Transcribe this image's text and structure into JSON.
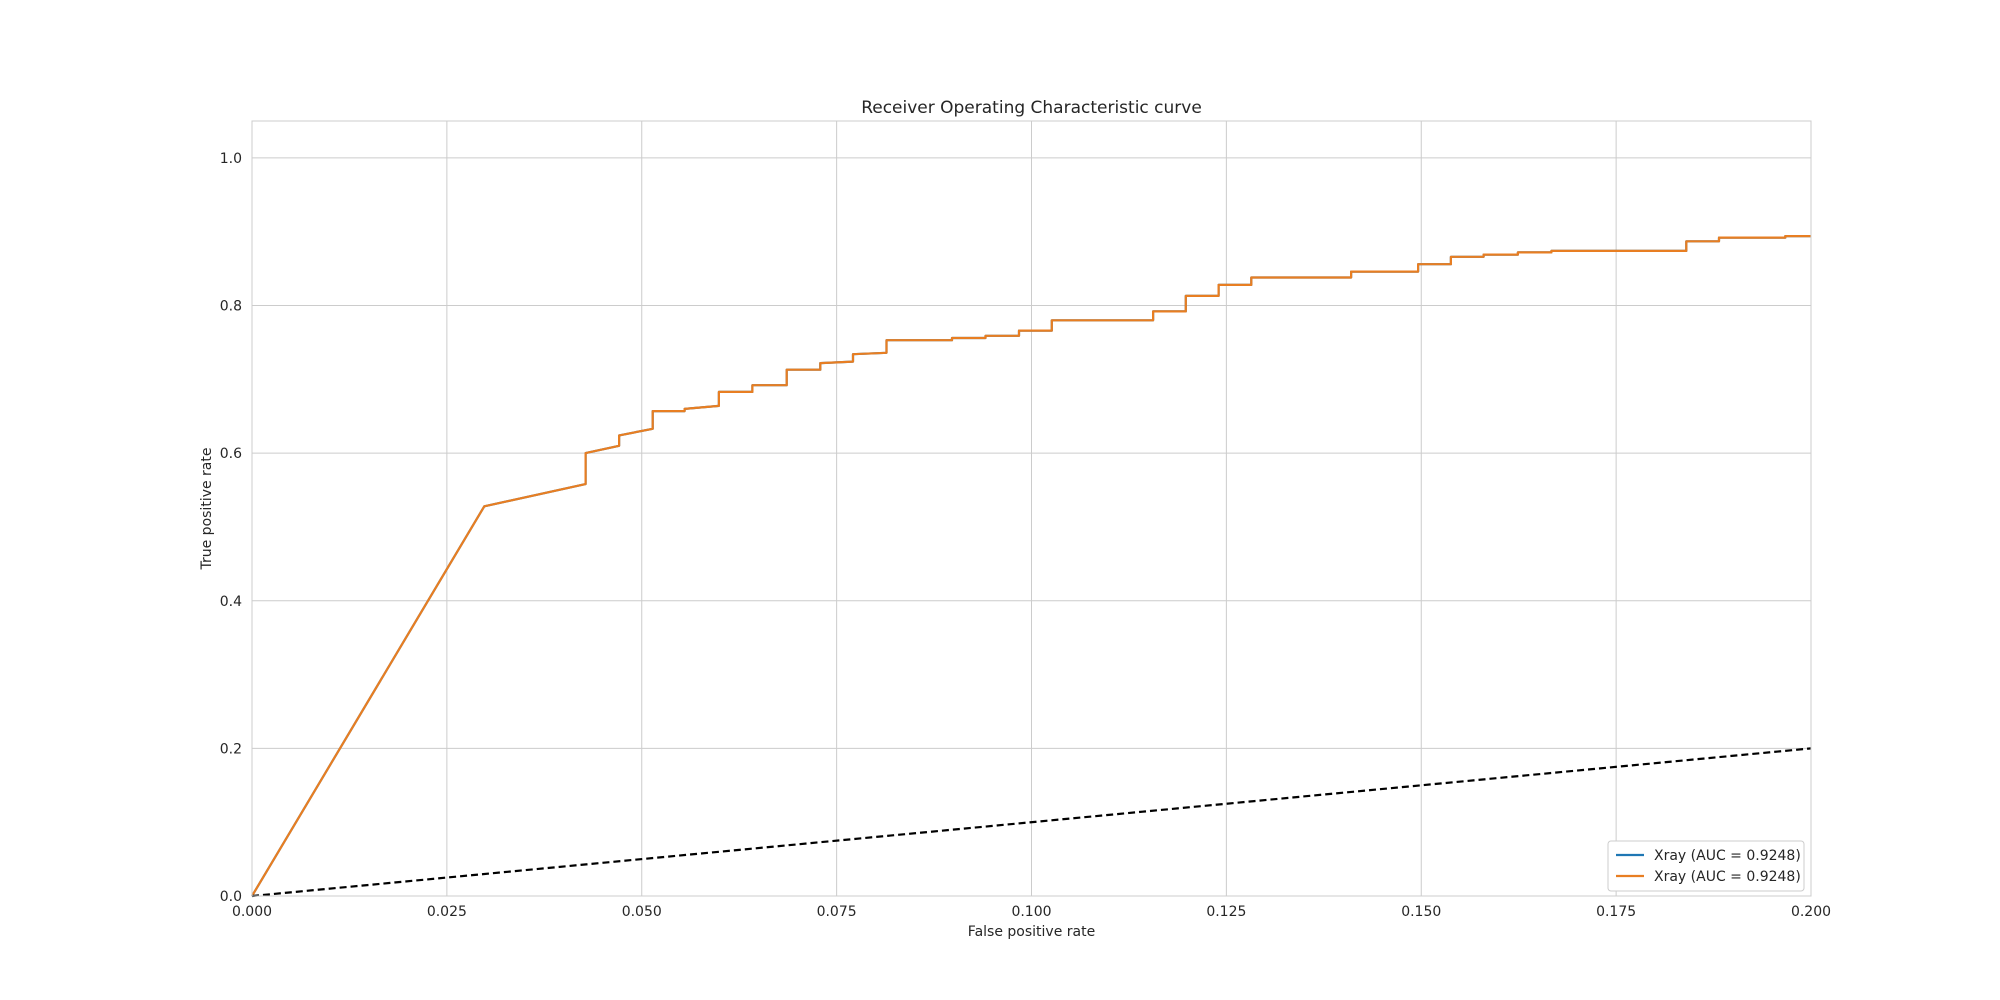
{
  "chart_data": {
    "type": "line",
    "title": "Receiver Operating Characteristic curve",
    "xlabel": "False positive rate",
    "ylabel": "True positive rate",
    "xlim": [
      0.0,
      0.2
    ],
    "ylim": [
      0.0,
      1.05
    ],
    "grid": true,
    "legend_position": "lower-right",
    "x_ticks": [
      "0.000",
      "0.025",
      "0.050",
      "0.075",
      "0.100",
      "0.125",
      "0.150",
      "0.175",
      "0.200"
    ],
    "y_ticks": [
      "0.0",
      "0.2",
      "0.4",
      "0.6",
      "0.8",
      "1.0"
    ],
    "series": [
      {
        "name": "Xray (AUC = 0.9248)",
        "color": "#1f77b4",
        "style": "solid",
        "x": [
          0.0,
          0.0298,
          0.0428,
          0.0428,
          0.0471,
          0.0471,
          0.0514,
          0.0514,
          0.0555,
          0.0555,
          0.0599,
          0.0599,
          0.0642,
          0.0642,
          0.0686,
          0.0686,
          0.0729,
          0.0729,
          0.0771,
          0.0771,
          0.0814,
          0.0814,
          0.0898,
          0.0898,
          0.0941,
          0.0941,
          0.0984,
          0.0984,
          0.1026,
          0.1026,
          0.1156,
          0.1156,
          0.1198,
          0.1198,
          0.124,
          0.124,
          0.1282,
          0.1282,
          0.141,
          0.141,
          0.1496,
          0.1496,
          0.1538,
          0.1538,
          0.158,
          0.158,
          0.1624,
          0.1624,
          0.1667,
          0.1667,
          0.184,
          0.184,
          0.1882,
          0.1882,
          0.1967,
          0.1967,
          0.2
        ],
        "y": [
          0.0,
          0.528,
          0.558,
          0.6,
          0.61,
          0.624,
          0.633,
          0.657,
          0.657,
          0.66,
          0.664,
          0.683,
          0.683,
          0.692,
          0.692,
          0.713,
          0.713,
          0.722,
          0.724,
          0.734,
          0.736,
          0.753,
          0.753,
          0.756,
          0.756,
          0.759,
          0.759,
          0.766,
          0.766,
          0.78,
          0.78,
          0.792,
          0.792,
          0.813,
          0.813,
          0.828,
          0.828,
          0.838,
          0.838,
          0.846,
          0.846,
          0.856,
          0.856,
          0.866,
          0.866,
          0.869,
          0.869,
          0.872,
          0.872,
          0.874,
          0.874,
          0.887,
          0.887,
          0.892,
          0.892,
          0.894,
          0.894
        ]
      },
      {
        "name": "Xray (AUC = 0.9248)",
        "color": "#e87e22",
        "style": "solid",
        "x": [
          0.0,
          0.0298,
          0.0428,
          0.0428,
          0.0471,
          0.0471,
          0.0514,
          0.0514,
          0.0555,
          0.0555,
          0.0599,
          0.0599,
          0.0642,
          0.0642,
          0.0686,
          0.0686,
          0.0729,
          0.0729,
          0.0771,
          0.0771,
          0.0814,
          0.0814,
          0.0898,
          0.0898,
          0.0941,
          0.0941,
          0.0984,
          0.0984,
          0.1026,
          0.1026,
          0.1156,
          0.1156,
          0.1198,
          0.1198,
          0.124,
          0.124,
          0.1282,
          0.1282,
          0.141,
          0.141,
          0.1496,
          0.1496,
          0.1538,
          0.1538,
          0.158,
          0.158,
          0.1624,
          0.1624,
          0.1667,
          0.1667,
          0.184,
          0.184,
          0.1882,
          0.1882,
          0.1967,
          0.1967,
          0.2
        ],
        "y": [
          0.0,
          0.528,
          0.558,
          0.6,
          0.61,
          0.624,
          0.633,
          0.657,
          0.657,
          0.66,
          0.664,
          0.683,
          0.683,
          0.692,
          0.692,
          0.713,
          0.713,
          0.722,
          0.724,
          0.734,
          0.736,
          0.753,
          0.753,
          0.756,
          0.756,
          0.759,
          0.759,
          0.766,
          0.766,
          0.78,
          0.78,
          0.792,
          0.792,
          0.813,
          0.813,
          0.828,
          0.828,
          0.838,
          0.838,
          0.846,
          0.846,
          0.856,
          0.856,
          0.866,
          0.866,
          0.869,
          0.869,
          0.872,
          0.872,
          0.874,
          0.874,
          0.887,
          0.887,
          0.892,
          0.892,
          0.894,
          0.894
        ]
      },
      {
        "color": "#000000",
        "style": "dashed",
        "x": [
          0.0,
          0.2
        ],
        "y": [
          0.0,
          0.2
        ]
      }
    ]
  }
}
